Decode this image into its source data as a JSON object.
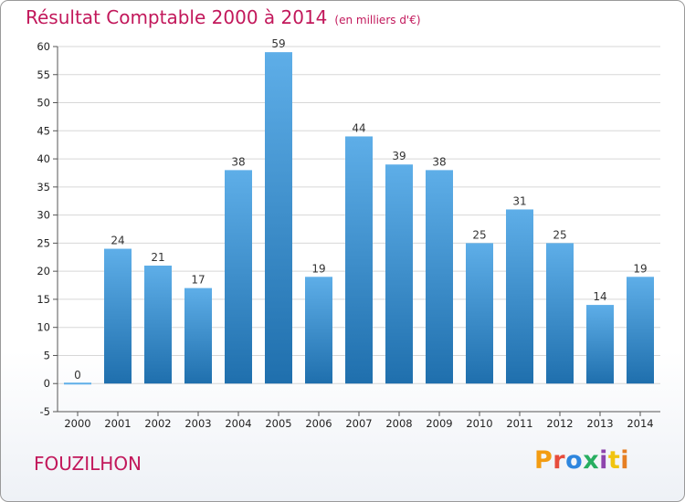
{
  "header": {
    "title": "Résultat Comptable 2000 à 2014",
    "subtitle": "(en milliers d'€)"
  },
  "footer": {
    "place": "FOUZILHON",
    "logo": "Proxiti"
  },
  "colors": {
    "accent": "#c2185b",
    "bar_top": "#5eaee8",
    "bar_bottom": "#1f6fad",
    "grid": "#d7d7d7"
  },
  "chart_data": {
    "type": "bar",
    "title": "Résultat Comptable 2000 à 2014",
    "subtitle": "(en milliers d'€)",
    "xlabel": "",
    "ylabel": "",
    "categories": [
      "2000",
      "2001",
      "2002",
      "2003",
      "2004",
      "2005",
      "2006",
      "2007",
      "2008",
      "2009",
      "2010",
      "2011",
      "2012",
      "2013",
      "2014"
    ],
    "values": [
      0,
      24,
      21,
      17,
      38,
      59,
      19,
      44,
      39,
      38,
      25,
      31,
      25,
      14,
      19
    ],
    "ylim": [
      -5,
      60
    ],
    "yticks": [
      -5,
      0,
      5,
      10,
      15,
      20,
      25,
      30,
      35,
      40,
      45,
      50,
      55,
      60
    ],
    "grid": true,
    "legend": "none"
  }
}
